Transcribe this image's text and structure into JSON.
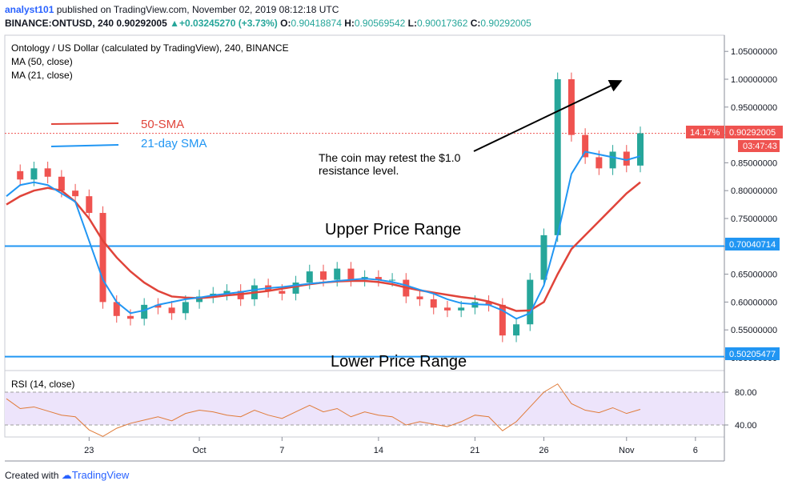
{
  "header": {
    "user": "analyst101",
    "published_text": "published on TradingView.com, November 02, 2019 08:12:18 UTC",
    "symbol": "BINANCE:ONTUSD, 240",
    "last_price": "0.90292005",
    "change": "+0.03245270 (+3.73%)",
    "o_label": "O:",
    "o_value": "0.90418874",
    "h_label": "H:",
    "h_value": "0.90569542",
    "l_label": "L:",
    "l_value": "0.90017362",
    "c_label": "C:",
    "c_value": "0.90292005"
  },
  "footer": {
    "created_with": "Created with",
    "brand": "TradingView"
  },
  "colors": {
    "sma50": "#e0443a",
    "sma21": "#2196f3",
    "up": "#26a69a",
    "down": "#ef5350",
    "hline": "#2196f3",
    "rsi": "#e07b39",
    "rsi_band": "#ede4fb"
  },
  "chart_data": [
    {
      "type": "candlestick",
      "title": "Ontology / US Dollar (calculated by TradingView), 240, BINANCE",
      "indicators": [
        "MA (50, close)",
        "MA (21, close)"
      ],
      "legend_entries": [
        "50-SMA",
        "21-day SMA"
      ],
      "legend_placement": "top-left",
      "ylim": [
        0.49,
        1.08
      ],
      "y_ticks": [
        "1.05000000",
        "1.00000000",
        "0.95000000",
        "0.90000000",
        "0.85000000",
        "0.80000000",
        "0.75000000",
        "0.70000000",
        "0.65000000",
        "0.60000000",
        "0.55000000",
        "0.50000000"
      ],
      "x_ticks": [
        "23",
        "Oct",
        "7",
        "14",
        "21",
        "26",
        "Nov",
        "6"
      ],
      "x": [
        "2019-09-17",
        "2019-09-18",
        "2019-09-19",
        "2019-09-20",
        "2019-09-21",
        "2019-09-22",
        "2019-09-23",
        "2019-09-24",
        "2019-09-25",
        "2019-09-26",
        "2019-09-27",
        "2019-09-28",
        "2019-09-29",
        "2019-09-30",
        "2019-10-01",
        "2019-10-02",
        "2019-10-03",
        "2019-10-04",
        "2019-10-05",
        "2019-10-06",
        "2019-10-07",
        "2019-10-08",
        "2019-10-09",
        "2019-10-10",
        "2019-10-11",
        "2019-10-12",
        "2019-10-13",
        "2019-10-14",
        "2019-10-15",
        "2019-10-16",
        "2019-10-17",
        "2019-10-18",
        "2019-10-19",
        "2019-10-20",
        "2019-10-21",
        "2019-10-22",
        "2019-10-23",
        "2019-10-24",
        "2019-10-25",
        "2019-10-26",
        "2019-10-27",
        "2019-10-28",
        "2019-10-29",
        "2019-10-30",
        "2019-10-31",
        "2019-11-01",
        "2019-11-02"
      ],
      "close": [
        0.835,
        0.82,
        0.84,
        0.825,
        0.8,
        0.79,
        0.76,
        0.6,
        0.575,
        0.57,
        0.595,
        0.59,
        0.58,
        0.6,
        0.61,
        0.615,
        0.62,
        0.605,
        0.63,
        0.62,
        0.615,
        0.635,
        0.655,
        0.64,
        0.66,
        0.64,
        0.645,
        0.64,
        0.64,
        0.61,
        0.605,
        0.59,
        0.585,
        0.59,
        0.6,
        0.595,
        0.54,
        0.56,
        0.64,
        0.72,
        1.0,
        0.9,
        0.86,
        0.84,
        0.87,
        0.845,
        0.903
      ],
      "sma50": [
        0.775,
        0.79,
        0.8,
        0.805,
        0.8,
        0.78,
        0.75,
        0.71,
        0.68,
        0.655,
        0.635,
        0.62,
        0.61,
        0.608,
        0.607,
        0.609,
        0.612,
        0.614,
        0.617,
        0.62,
        0.624,
        0.628,
        0.632,
        0.635,
        0.637,
        0.638,
        0.638,
        0.636,
        0.632,
        0.626,
        0.621,
        0.617,
        0.613,
        0.609,
        0.606,
        0.601,
        0.593,
        0.584,
        0.585,
        0.6,
        0.65,
        0.695,
        0.72,
        0.745,
        0.77,
        0.795,
        0.815
      ],
      "sma21": [
        0.79,
        0.81,
        0.815,
        0.81,
        0.795,
        0.78,
        0.71,
        0.64,
        0.6,
        0.58,
        0.585,
        0.595,
        0.6,
        0.605,
        0.608,
        0.612,
        0.615,
        0.618,
        0.622,
        0.625,
        0.627,
        0.63,
        0.633,
        0.635,
        0.638,
        0.64,
        0.642,
        0.64,
        0.636,
        0.63,
        0.622,
        0.615,
        0.605,
        0.598,
        0.596,
        0.595,
        0.585,
        0.57,
        0.58,
        0.63,
        0.72,
        0.83,
        0.87,
        0.865,
        0.86,
        0.855,
        0.862
      ],
      "levels": [
        {
          "name": "Upper Price Range",
          "value": 0.70040714,
          "label": "0.70040714"
        },
        {
          "name": "Lower Price Range",
          "value": 0.50205477,
          "label": "0.50205477"
        }
      ],
      "last_price_label": "0.90292005",
      "change_percent_label": "14.17%",
      "countdown_label": "03:47:43",
      "annotation": "The coin may retest the $1.0 resistance level."
    },
    {
      "type": "line",
      "title": "RSI (14, close)",
      "ylim": [
        20,
        100
      ],
      "y_ticks": [
        "80.00",
        "40.00"
      ],
      "band": [
        30,
        70
      ],
      "x": [
        "2019-09-17",
        "2019-09-18",
        "2019-09-19",
        "2019-09-20",
        "2019-09-21",
        "2019-09-22",
        "2019-09-23",
        "2019-09-24",
        "2019-09-25",
        "2019-09-26",
        "2019-09-27",
        "2019-09-28",
        "2019-09-29",
        "2019-09-30",
        "2019-10-01",
        "2019-10-02",
        "2019-10-03",
        "2019-10-04",
        "2019-10-05",
        "2019-10-06",
        "2019-10-07",
        "2019-10-08",
        "2019-10-09",
        "2019-10-10",
        "2019-10-11",
        "2019-10-12",
        "2019-10-13",
        "2019-10-14",
        "2019-10-15",
        "2019-10-16",
        "2019-10-17",
        "2019-10-18",
        "2019-10-19",
        "2019-10-20",
        "2019-10-21",
        "2019-10-22",
        "2019-10-23",
        "2019-10-24",
        "2019-10-25",
        "2019-10-26",
        "2019-10-27",
        "2019-10-28",
        "2019-10-29",
        "2019-10-30",
        "2019-10-31",
        "2019-11-01",
        "2019-11-02"
      ],
      "values": [
        72,
        60,
        62,
        57,
        52,
        50,
        34,
        26,
        36,
        42,
        46,
        50,
        45,
        54,
        58,
        56,
        52,
        50,
        58,
        52,
        48,
        56,
        64,
        56,
        60,
        50,
        56,
        52,
        50,
        40,
        44,
        41,
        38,
        44,
        52,
        50,
        33,
        44,
        62,
        80,
        90,
        66,
        58,
        55,
        61,
        54,
        59
      ]
    }
  ]
}
